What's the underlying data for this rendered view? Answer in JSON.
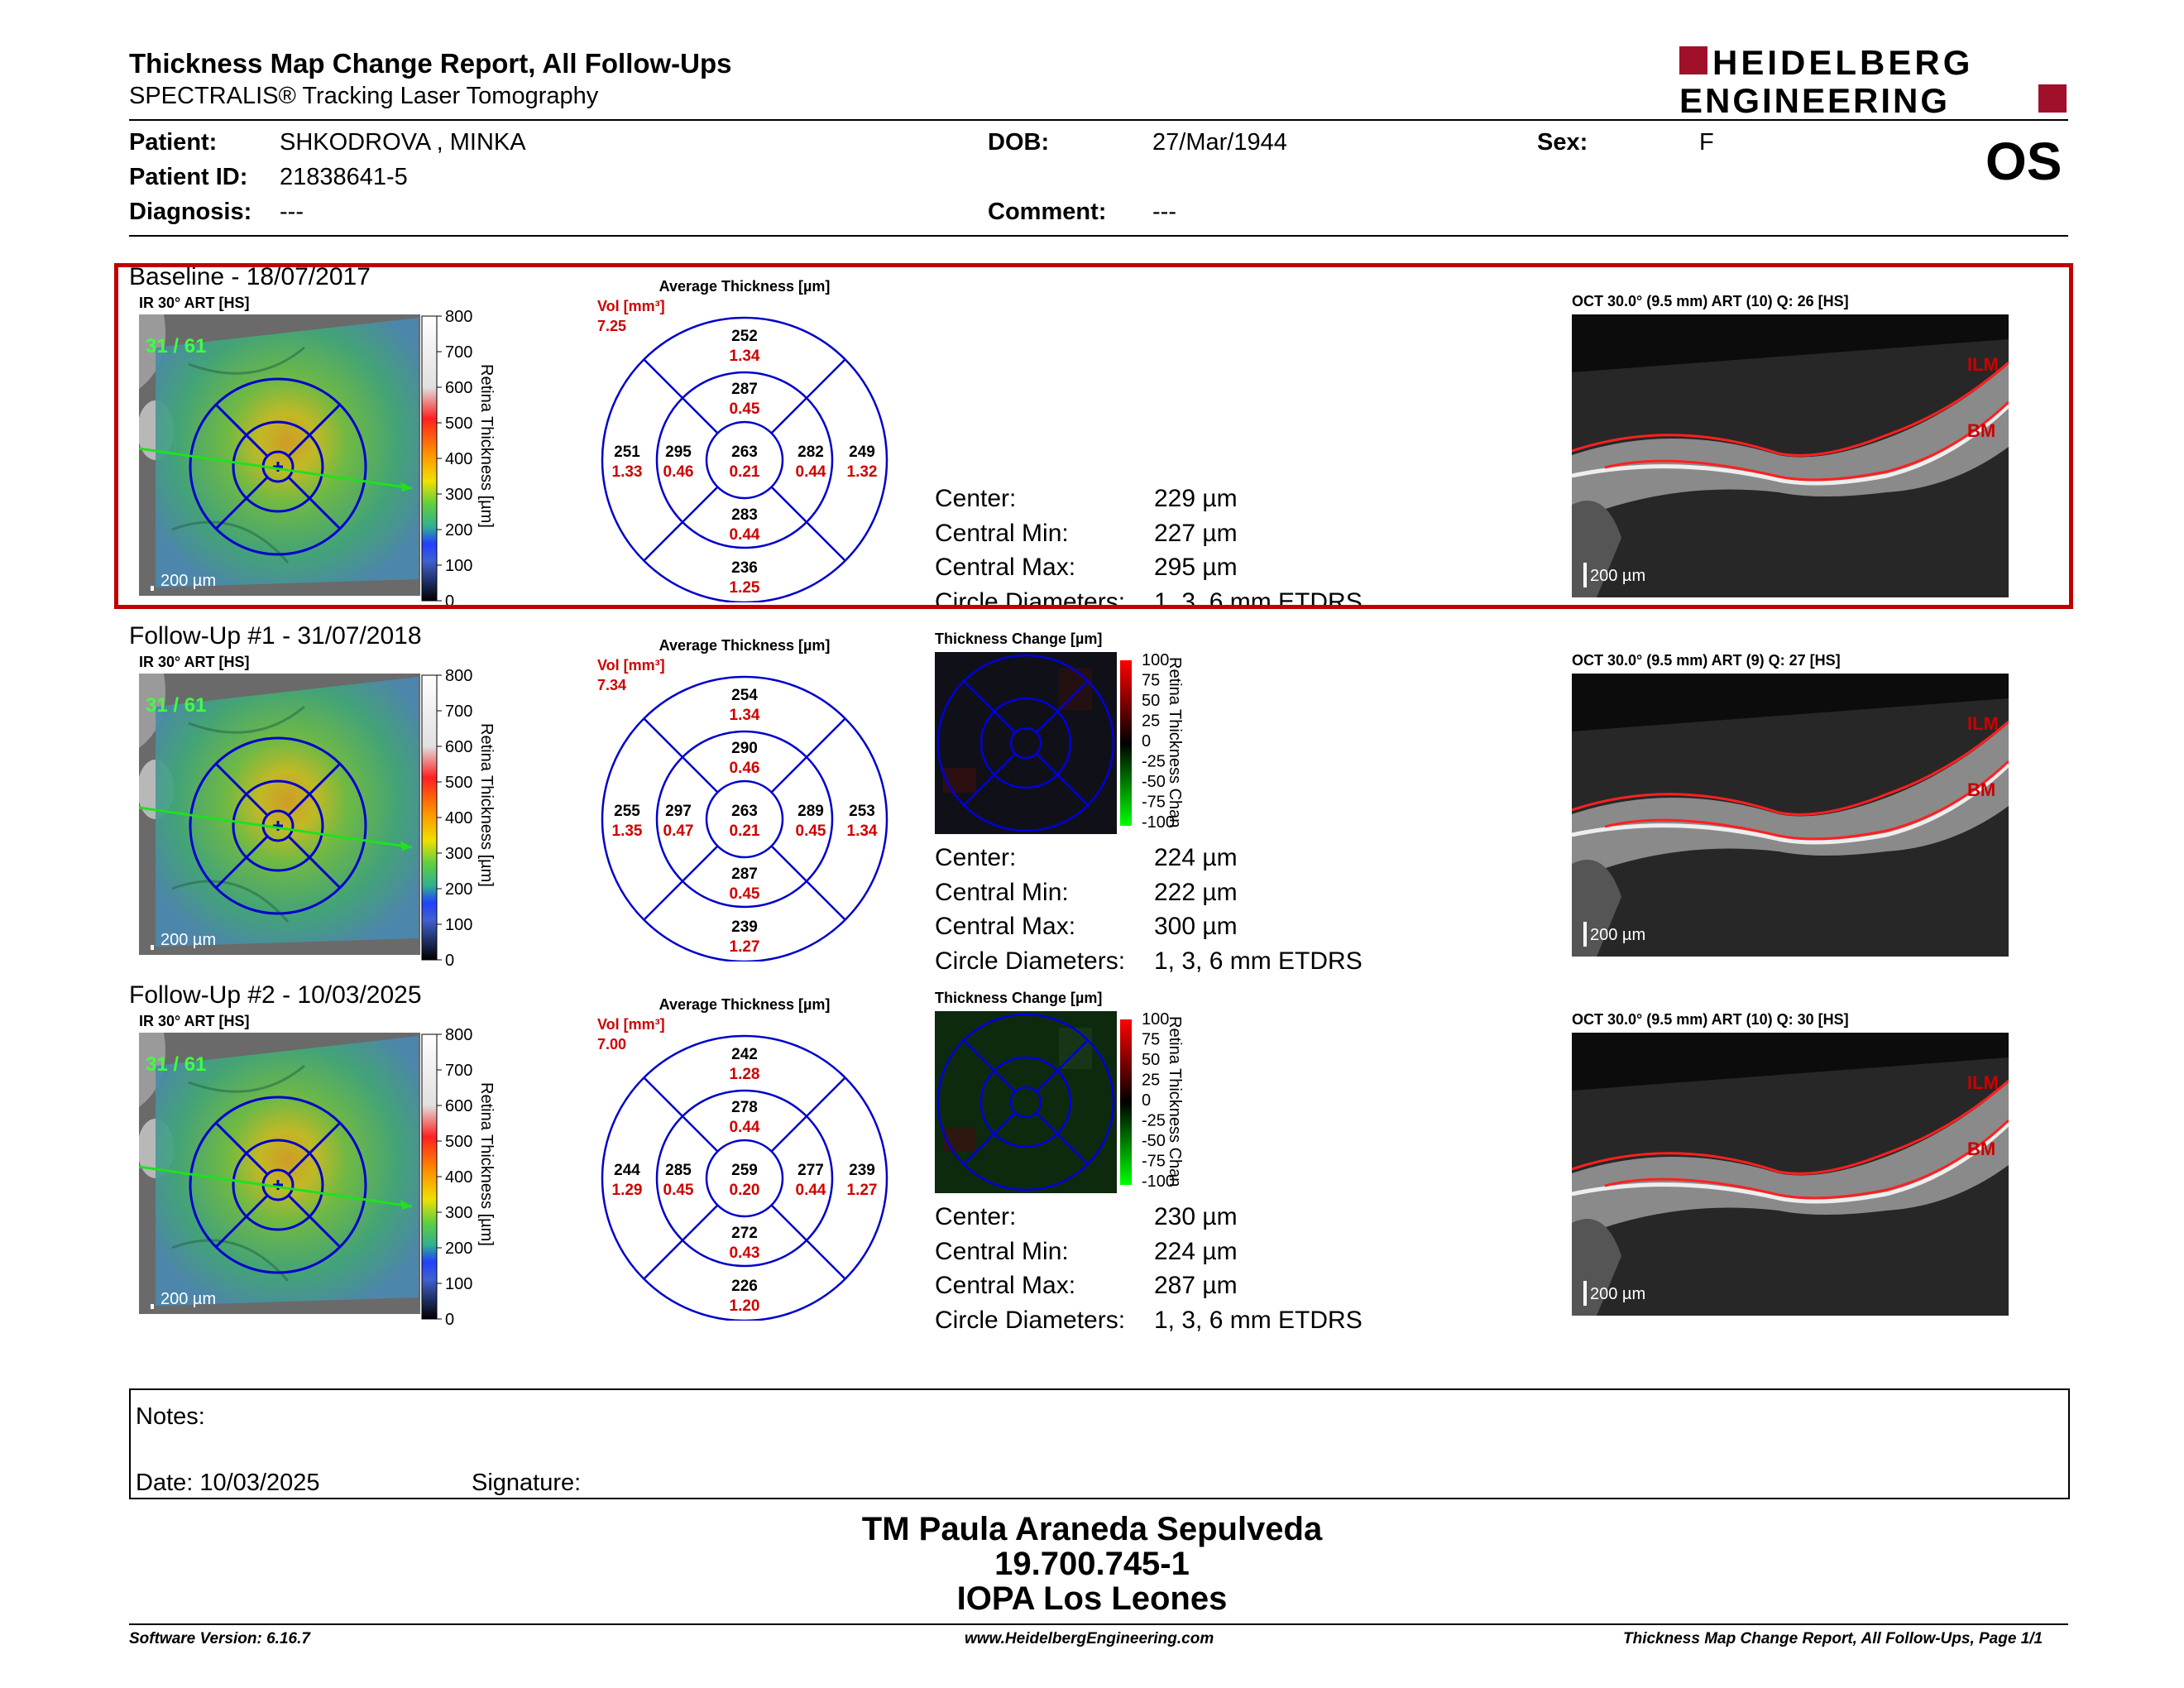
{
  "header": {
    "title": "Thickness Map Change Report, All Follow-Ups",
    "subtitle": "SPECTRALIS® Tracking Laser Tomography",
    "logo_line1": "HEIDELBERG",
    "logo_line2": "ENGINEERING",
    "eye": "OS"
  },
  "patient": {
    "patient_label": "Patient:",
    "patient_value": "SHKODROVA , MINKA",
    "id_label": "Patient ID:",
    "id_value": "21838641-5",
    "diagnosis_label": "Diagnosis:",
    "diagnosis_value": "---",
    "dob_label": "DOB:",
    "dob_value": "27/Mar/1944",
    "comment_label": "Comment:",
    "comment_value": "---",
    "sex_label": "Sex:",
    "sex_value": "F"
  },
  "common": {
    "ir_label": "IR 30° ART [HS]",
    "scale_label": "200 µm",
    "cb_title": "Retina Thickness [µm]",
    "cb_ticks": [
      "800",
      "700",
      "600",
      "500",
      "400",
      "300",
      "200",
      "100",
      "0"
    ],
    "avg_title": "Average Thickness [µm]",
    "vol_label": "Vol [mm³]",
    "change_title": "Thickness Change [µm]",
    "change_cb_title": "Retina Thickness Chan",
    "change_ticks": [
      "100",
      "75",
      "50",
      "25",
      "0",
      "-25",
      "-50",
      "-75",
      "-100"
    ],
    "stat_center": "Center:",
    "stat_min": "Central Min:",
    "stat_max": "Central Max:",
    "stat_circle": "Circle Diameters:",
    "circle_value": "1, 3, 6 mm ETDRS",
    "oct_scale": "200 µm",
    "ilm": "ILM",
    "bm": "BM",
    "frame": "31 / 61"
  },
  "exams": [
    {
      "title": "Baseline - 18/07/2017",
      "vol": "7.25",
      "oct_label": "OCT 30.0° (9.5 mm) ART (10) Q: 26 [HS]",
      "center": "229 µm",
      "min": "227 µm",
      "max": "295 µm",
      "etdrs": {
        "c": [
          "263",
          "0.21"
        ],
        "is": [
          "287",
          "0.45"
        ],
        "ii": [
          "283",
          "0.44"
        ],
        "it": [
          "295",
          "0.46"
        ],
        "in": [
          "282",
          "0.44"
        ],
        "os": [
          "252",
          "1.34"
        ],
        "oi": [
          "236",
          "1.25"
        ],
        "ot": [
          "251",
          "1.33"
        ],
        "on": [
          "249",
          "1.32"
        ]
      }
    },
    {
      "title": "Follow-Up #1 - 31/07/2018",
      "vol": "7.34",
      "oct_label": "OCT 30.0° (9.5 mm) ART (9) Q: 27 [HS]",
      "center": "224 µm",
      "min": "222 µm",
      "max": "300 µm",
      "etdrs": {
        "c": [
          "263",
          "0.21"
        ],
        "is": [
          "290",
          "0.46"
        ],
        "ii": [
          "287",
          "0.45"
        ],
        "it": [
          "297",
          "0.47"
        ],
        "in": [
          "289",
          "0.45"
        ],
        "os": [
          "254",
          "1.34"
        ],
        "oi": [
          "239",
          "1.27"
        ],
        "ot": [
          "255",
          "1.35"
        ],
        "on": [
          "253",
          "1.34"
        ]
      }
    },
    {
      "title": "Follow-Up #2 - 10/03/2025",
      "vol": "7.00",
      "oct_label": "OCT 30.0° (9.5 mm) ART (10) Q: 30 [HS]",
      "center": "230 µm",
      "min": "224 µm",
      "max": "287 µm",
      "etdrs": {
        "c": [
          "259",
          "0.20"
        ],
        "is": [
          "278",
          "0.44"
        ],
        "ii": [
          "272",
          "0.43"
        ],
        "it": [
          "285",
          "0.45"
        ],
        "in": [
          "277",
          "0.44"
        ],
        "os": [
          "242",
          "1.28"
        ],
        "oi": [
          "226",
          "1.20"
        ],
        "ot": [
          "244",
          "1.29"
        ],
        "on": [
          "239",
          "1.27"
        ]
      }
    }
  ],
  "notes": {
    "notes_label": "Notes:",
    "date_label": "Date: 10/03/2025",
    "signature_label": "Signature:"
  },
  "footer": {
    "line1": "TM Paula Araneda Sepulveda",
    "line2": "19.700.745-1",
    "line3": "IOPA Los Leones",
    "software": "Software Version: 6.16.7",
    "website": "www.HeidelbergEngineering.com",
    "page": "Thickness Map Change Report, All Follow-Ups, Page 1/1"
  },
  "colors": {
    "accent_red": "#c00000",
    "circle_blue": "#0000cc",
    "value_red": "#d00000"
  }
}
